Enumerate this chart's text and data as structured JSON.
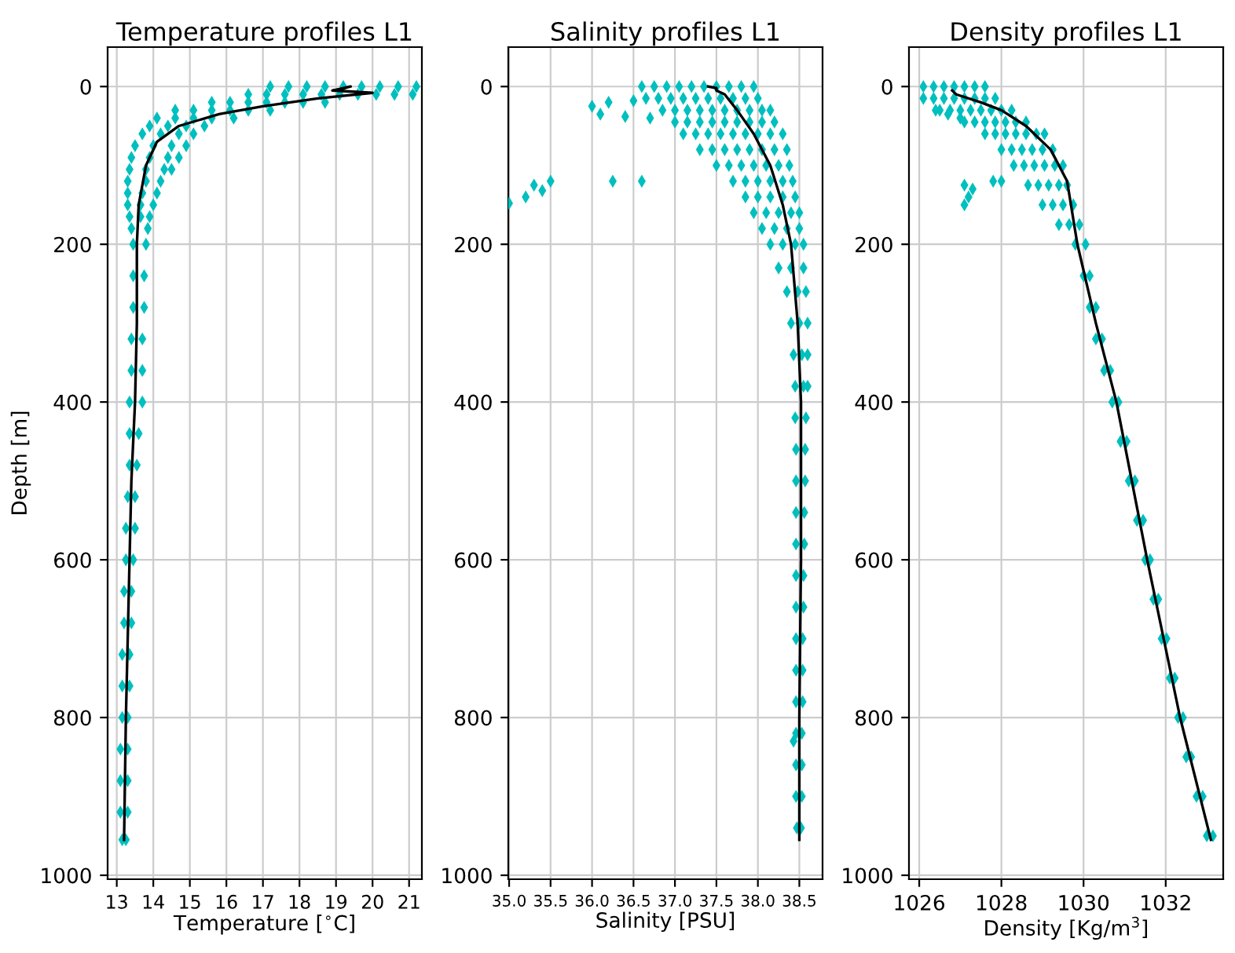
{
  "chart_data": [
    {
      "type": "line",
      "title": "Temperature profiles L1",
      "xlabel": "Temperature [$^{∘}$C]",
      "ylabel": "Depth [m]",
      "xlim": [
        12.75,
        21.35
      ],
      "xticks": [
        13,
        14,
        15,
        16,
        17,
        18,
        19,
        20,
        21
      ],
      "ylim": [
        1005,
        -50
      ],
      "yticks": [
        0,
        200,
        400,
        600,
        800,
        1000
      ],
      "grid": true,
      "series": [
        {
          "type": "scatter",
          "marker": "diamond",
          "color": "#00bfbf",
          "x": [
            17.2,
            17.7,
            18.2,
            18.7,
            19.2,
            19.7,
            20.2,
            20.7,
            21.2,
            16.6,
            17.1,
            17.6,
            18.1,
            18.6,
            19.1,
            19.6,
            20.1,
            20.6,
            21.1,
            15.6,
            16.1,
            16.6,
            17.1,
            17.6,
            18.1,
            18.7,
            14.6,
            15.1,
            15.6,
            16.1,
            16.6,
            17.2,
            14.1,
            14.6,
            15.1,
            15.6,
            16.2,
            13.9,
            14.4,
            14.9,
            15.4,
            13.7,
            14.2,
            14.7,
            15.1,
            13.5,
            14.0,
            14.5,
            14.9,
            13.4,
            13.9,
            14.4,
            14.7,
            13.35,
            13.8,
            14.3,
            14.5,
            13.3,
            13.8,
            14.2,
            13.3,
            13.7,
            14.1,
            13.3,
            13.65,
            14.0,
            13.35,
            13.65,
            13.9,
            13.4,
            13.85,
            13.45,
            13.8,
            13.45,
            13.75,
            13.45,
            13.75,
            13.4,
            13.7,
            13.4,
            13.7,
            13.35,
            13.7,
            13.35,
            13.6,
            13.35,
            13.55,
            13.3,
            13.5,
            13.25,
            13.5,
            13.25,
            13.45,
            13.2,
            13.4,
            13.2,
            13.4,
            13.15,
            13.35,
            13.15,
            13.35,
            13.15,
            13.3,
            13.1,
            13.3,
            13.1,
            13.3,
            13.1,
            13.3,
            13.15,
            13.25
          ],
          "values": [
            0,
            0,
            0,
            0,
            0,
            0,
            0,
            0,
            0,
            10,
            10,
            10,
            10,
            10,
            10,
            10,
            10,
            10,
            10,
            20,
            20,
            20,
            20,
            20,
            20,
            20,
            30,
            30,
            30,
            30,
            30,
            30,
            40,
            40,
            40,
            40,
            40,
            50,
            50,
            50,
            50,
            60,
            60,
            60,
            60,
            75,
            75,
            75,
            75,
            90,
            90,
            90,
            90,
            105,
            105,
            105,
            105,
            120,
            120,
            120,
            135,
            135,
            135,
            150,
            150,
            150,
            165,
            165,
            165,
            180,
            180,
            200,
            200,
            240,
            240,
            280,
            280,
            320,
            320,
            360,
            360,
            400,
            400,
            440,
            440,
            480,
            480,
            520,
            520,
            560,
            560,
            600,
            600,
            640,
            640,
            680,
            680,
            720,
            720,
            760,
            760,
            800,
            800,
            840,
            840,
            880,
            880,
            920,
            920,
            955,
            955
          ]
        },
        {
          "color": "#000000",
          "x": [
            19.0,
            19.4,
            18.9,
            20.0,
            18.5,
            17.0,
            15.8,
            14.7,
            14.1,
            13.8,
            13.6,
            13.55,
            13.55,
            13.5,
            13.4,
            13.35,
            13.25,
            13.2
          ],
          "values": [
            5,
            0,
            5,
            8,
            15,
            25,
            35,
            50,
            70,
            100,
            150,
            200,
            300,
            400,
            500,
            600,
            800,
            955
          ]
        }
      ]
    },
    {
      "type": "line",
      "title": "Salinity profiles L1",
      "xlabel": "Salinity [PSU]",
      "xlim": [
        34.99,
        38.78
      ],
      "xticks": [
        {
          "value": 35.0,
          "label": "35.0"
        },
        {
          "value": 35.5,
          "label": "35.5"
        },
        {
          "value": 36.0,
          "label": "36.0"
        },
        {
          "value": 36.5,
          "label": "36.5"
        },
        {
          "value": 37.0,
          "label": "37.0"
        },
        {
          "value": 37.5,
          "label": "37.5"
        },
        {
          "value": 38.0,
          "label": "38.0"
        },
        {
          "value": 38.5,
          "label": "38.5"
        }
      ],
      "ylim": [
        1005,
        -50
      ],
      "yticks": [
        0,
        200,
        400,
        600,
        800,
        1000
      ],
      "grid": true,
      "series": [
        {
          "type": "scatter",
          "marker": "diamond",
          "color": "#00bfbf",
          "x": [
            36.6,
            36.75,
            36.9,
            37.05,
            37.2,
            37.35,
            37.5,
            37.65,
            37.8,
            37.95,
            36.65,
            36.8,
            36.95,
            37.1,
            37.25,
            37.4,
            37.55,
            37.7,
            37.85,
            38.0,
            36.85,
            37.0,
            37.15,
            37.3,
            37.45,
            37.6,
            37.75,
            37.9,
            38.05,
            38.15,
            37.0,
            37.15,
            37.3,
            37.45,
            37.6,
            37.75,
            37.9,
            38.05,
            38.2,
            37.1,
            37.25,
            37.4,
            37.55,
            37.7,
            37.85,
            38.0,
            38.15,
            38.3,
            37.3,
            37.45,
            37.6,
            37.75,
            37.9,
            38.05,
            38.2,
            38.35,
            37.5,
            37.65,
            37.8,
            37.95,
            38.1,
            38.25,
            38.38,
            37.7,
            37.85,
            38.0,
            38.15,
            38.3,
            38.42,
            37.85,
            38.0,
            38.15,
            38.3,
            38.45,
            37.95,
            38.1,
            38.25,
            38.4,
            38.5,
            38.05,
            38.2,
            38.35,
            38.5,
            38.15,
            38.3,
            38.45,
            38.55,
            38.25,
            38.4,
            38.55,
            38.35,
            38.48,
            38.58,
            38.4,
            38.5,
            38.6,
            38.43,
            38.53,
            38.6,
            38.45,
            38.55,
            38.6,
            38.45,
            38.58,
            38.46,
            38.57,
            38.46,
            38.57,
            38.46,
            38.56,
            38.46,
            38.56,
            38.46,
            38.55,
            38.46,
            38.55,
            38.46,
            38.54,
            38.46,
            38.54,
            38.46,
            38.54,
            38.46,
            38.53,
            38.46,
            38.53,
            38.46,
            38.53,
            38.47,
            38.52
          ],
          "values": [
            0,
            0,
            0,
            0,
            0,
            0,
            0,
            0,
            0,
            0,
            15,
            15,
            15,
            15,
            15,
            15,
            15,
            15,
            15,
            15,
            30,
            30,
            30,
            30,
            30,
            30,
            30,
            30,
            30,
            30,
            45,
            45,
            45,
            45,
            45,
            45,
            45,
            45,
            45,
            60,
            60,
            60,
            60,
            60,
            60,
            60,
            60,
            60,
            80,
            80,
            80,
            80,
            80,
            80,
            80,
            80,
            100,
            100,
            100,
            100,
            100,
            100,
            100,
            120,
            120,
            120,
            120,
            120,
            120,
            140,
            140,
            140,
            140,
            140,
            160,
            160,
            160,
            160,
            160,
            180,
            180,
            180,
            180,
            200,
            200,
            200,
            200,
            230,
            230,
            230,
            260,
            260,
            260,
            300,
            300,
            300,
            340,
            340,
            340,
            380,
            380,
            380,
            420,
            420,
            460,
            460,
            500,
            500,
            540,
            540,
            580,
            580,
            620,
            620,
            660,
            660,
            700,
            700,
            740,
            740,
            780,
            780,
            820,
            820,
            860,
            860,
            900,
            900,
            940,
            940
          ]
        },
        {
          "type": "scatter",
          "marker": "diamond",
          "color": "#00bfbf",
          "x": [
            35.3,
            35.2,
            35.0,
            35.4,
            35.5,
            36.25,
            36.6,
            36.0,
            36.2,
            36.1,
            36.5,
            36.7,
            36.4,
            38.43
          ],
          "values": [
            125,
            140,
            148,
            132,
            120,
            120,
            120,
            25,
            20,
            35,
            18,
            40,
            38,
            830
          ]
        },
        {
          "color": "#000000",
          "x": [
            37.4,
            37.5,
            37.5,
            37.6,
            37.75,
            37.95,
            38.15,
            38.3,
            38.4,
            38.48,
            38.52,
            38.52,
            38.5,
            38.5
          ],
          "values": [
            0,
            2,
            5,
            10,
            30,
            60,
            100,
            150,
            200,
            300,
            400,
            600,
            800,
            955
          ]
        }
      ]
    },
    {
      "type": "line",
      "title": "Density profiles L1",
      "xlabel": "Density [Kg/m$^{3}$]",
      "xlim": [
        1025.75,
        1033.4
      ],
      "xticks": [
        1026,
        1028,
        1030,
        1032
      ],
      "ylim": [
        1005,
        -50
      ],
      "yticks": [
        0,
        200,
        400,
        600,
        800,
        1000
      ],
      "grid": true,
      "series": [
        {
          "type": "scatter",
          "marker": "diamond",
          "color": "#00bfbf",
          "x": [
            1026.1,
            1026.35,
            1026.6,
            1026.85,
            1027.1,
            1027.35,
            1027.6,
            1026.1,
            1026.35,
            1026.6,
            1026.85,
            1027.1,
            1027.35,
            1027.6,
            1027.85,
            1026.5,
            1026.75,
            1027.0,
            1027.25,
            1027.5,
            1027.75,
            1028.0,
            1028.25,
            1027.1,
            1027.35,
            1027.6,
            1027.85,
            1028.1,
            1028.35,
            1028.6,
            1027.6,
            1027.85,
            1028.1,
            1028.35,
            1028.6,
            1028.85,
            1029.05,
            1028.0,
            1028.25,
            1028.5,
            1028.75,
            1029.0,
            1029.25,
            1028.3,
            1028.55,
            1028.8,
            1029.05,
            1029.3,
            1029.5,
            1028.65,
            1028.9,
            1029.15,
            1029.4,
            1029.6,
            1029.0,
            1029.25,
            1029.5,
            1029.75,
            1029.4,
            1029.65,
            1029.9,
            1029.8,
            1030.05,
            1030.0,
            1030.15,
            1030.15,
            1030.3,
            1030.3,
            1030.45,
            1030.5,
            1030.65,
            1030.7,
            1030.85,
            1030.9,
            1031.05,
            1031.1,
            1031.25,
            1031.3,
            1031.45,
            1031.5,
            1031.62,
            1031.7,
            1031.82,
            1031.9,
            1032.02,
            1032.1,
            1032.22,
            1032.3,
            1032.42,
            1032.5,
            1032.62,
            1032.75,
            1032.9,
            1033.0,
            1033.15
          ],
          "values": [
            0,
            0,
            0,
            0,
            0,
            0,
            0,
            15,
            15,
            15,
            15,
            15,
            15,
            15,
            15,
            30,
            30,
            30,
            30,
            30,
            30,
            30,
            30,
            45,
            45,
            45,
            45,
            45,
            45,
            45,
            60,
            60,
            60,
            60,
            60,
            60,
            60,
            80,
            80,
            80,
            80,
            80,
            80,
            100,
            100,
            100,
            100,
            100,
            100,
            125,
            125,
            125,
            125,
            125,
            150,
            150,
            150,
            150,
            175,
            175,
            175,
            200,
            200,
            240,
            240,
            280,
            280,
            320,
            320,
            360,
            360,
            400,
            400,
            450,
            450,
            500,
            500,
            550,
            550,
            600,
            600,
            650,
            650,
            700,
            700,
            750,
            750,
            800,
            800,
            850,
            850,
            900,
            900,
            950,
            950
          ]
        },
        {
          "type": "scatter",
          "marker": "diamond",
          "color": "#00bfbf",
          "x": [
            1027.1,
            1027.2,
            1027.1,
            1027.3,
            1027.8,
            1028.0,
            1026.4,
            1026.7,
            1027.0
          ],
          "values": [
            125,
            140,
            150,
            130,
            120,
            120,
            30,
            35,
            40
          ]
        },
        {
          "color": "#000000",
          "x": [
            1026.8,
            1026.9,
            1027.5,
            1028.0,
            1028.6,
            1029.2,
            1029.6,
            1029.85,
            1030.3,
            1030.8,
            1031.55,
            1032.35,
            1033.1
          ],
          "values": [
            5,
            10,
            20,
            30,
            50,
            80,
            120,
            200,
            300,
            400,
            600,
            800,
            955
          ]
        }
      ]
    }
  ]
}
